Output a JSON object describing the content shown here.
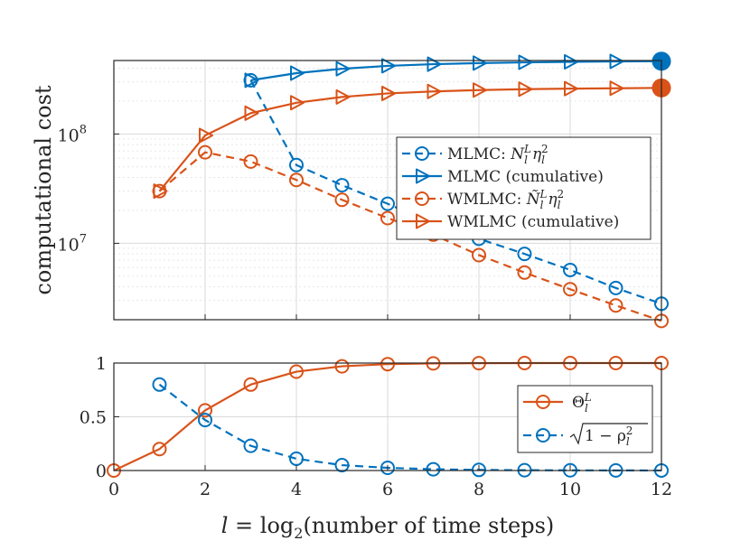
{
  "colors": {
    "mlmc": "#0072BD",
    "wmlmc": "#D95319",
    "axis": "#262626"
  },
  "chart_data": [
    {
      "type": "line",
      "yscale": "log",
      "ylabel": "computational cost",
      "xlim": [
        0,
        12
      ],
      "ylim": [
        2000000,
        470000000
      ],
      "y_tick_values": [
        10000000,
        100000000
      ],
      "y_tick_exponents": [
        "7",
        "8"
      ],
      "y_tick_base": "10",
      "series": [
        {
          "name": "MLMC: N_l^L η_l^2",
          "label_parts": [
            "MLMC: ",
            "N",
            "l",
            "L",
            "η",
            "l",
            "2"
          ],
          "style": "dashed-circle",
          "color_key": "mlmc",
          "x": [
            3,
            4,
            5,
            6,
            7,
            8,
            9,
            10,
            11,
            12
          ],
          "y": [
            310000000,
            52000000,
            34000000,
            23000000,
            15000000,
            11000000,
            8000000,
            5700000,
            3900000,
            2800000
          ]
        },
        {
          "name": "MLMC (cumulative)",
          "label": "MLMC (cumulative)",
          "style": "solid-triangle",
          "color_key": "mlmc",
          "x": [
            3,
            4,
            5,
            6,
            7,
            8,
            9,
            10,
            11,
            12
          ],
          "y": [
            310000000,
            360000000,
            395000000,
            420000000,
            435000000,
            445000000,
            452000000,
            457000000,
            461000000,
            463000000
          ],
          "end_marker": {
            "x": 12,
            "y": 463000000
          }
        },
        {
          "name": "WMLMC: Ñ_l^L η_l^2",
          "label_parts": [
            "WMLMC: ",
            "Ñ",
            "l",
            "L",
            "η",
            "l",
            "2"
          ],
          "style": "dashed-circle",
          "color_key": "wmlmc",
          "x": [
            1,
            2,
            3,
            4,
            5,
            6,
            7,
            8,
            9,
            10,
            11,
            12
          ],
          "y": [
            30000000,
            68000000,
            56000000,
            38000000,
            25000000,
            17000000,
            12000000,
            7800000,
            5400000,
            3800000,
            2700000,
            1950000
          ]
        },
        {
          "name": "WMLMC (cumulative)",
          "label": "WMLMC (cumulative)",
          "style": "solid-triangle",
          "color_key": "wmlmc",
          "x": [
            1,
            2,
            3,
            4,
            5,
            6,
            7,
            8,
            9,
            10,
            11,
            12
          ],
          "y": [
            30000000,
            97000000,
            155000000,
            193000000,
            218000000,
            235000000,
            245000000,
            252000000,
            257000000,
            260000000,
            262000000,
            264000000
          ],
          "end_marker": {
            "x": 12,
            "y": 264000000
          }
        }
      ]
    },
    {
      "type": "line",
      "xlabel_parts": [
        "l",
        " = log",
        "2",
        "(number of time steps)"
      ],
      "xlim": [
        0,
        12
      ],
      "ylim": [
        0,
        1
      ],
      "x_ticks": [
        "0",
        "2",
        "4",
        "6",
        "8",
        "10",
        "12"
      ],
      "y_ticks": [
        "0",
        "0.5",
        "1"
      ],
      "series": [
        {
          "name": "Θ_l^L",
          "label_parts": [
            "Θ",
            "l",
            "L"
          ],
          "style": "solid-circle",
          "color_key": "wmlmc",
          "x": [
            0,
            1,
            2,
            3,
            4,
            5,
            6,
            7,
            8,
            9,
            10,
            11,
            12
          ],
          "y": [
            0,
            0.2,
            0.56,
            0.8,
            0.92,
            0.97,
            0.99,
            0.997,
            0.999,
            1,
            1,
            1,
            1
          ]
        },
        {
          "name": "sqrt(1 - ρ_l^2)",
          "label_parts": [
            "1 − ρ",
            "l",
            "2"
          ],
          "style": "dashed-circle",
          "color_key": "mlmc",
          "x": [
            1,
            2,
            3,
            4,
            5,
            6,
            7,
            8,
            9,
            10,
            11,
            12
          ],
          "y": [
            0.8,
            0.47,
            0.23,
            0.11,
            0.05,
            0.025,
            0.012,
            0.006,
            0.003,
            0.002,
            0.001,
            0.0005
          ]
        }
      ]
    }
  ]
}
